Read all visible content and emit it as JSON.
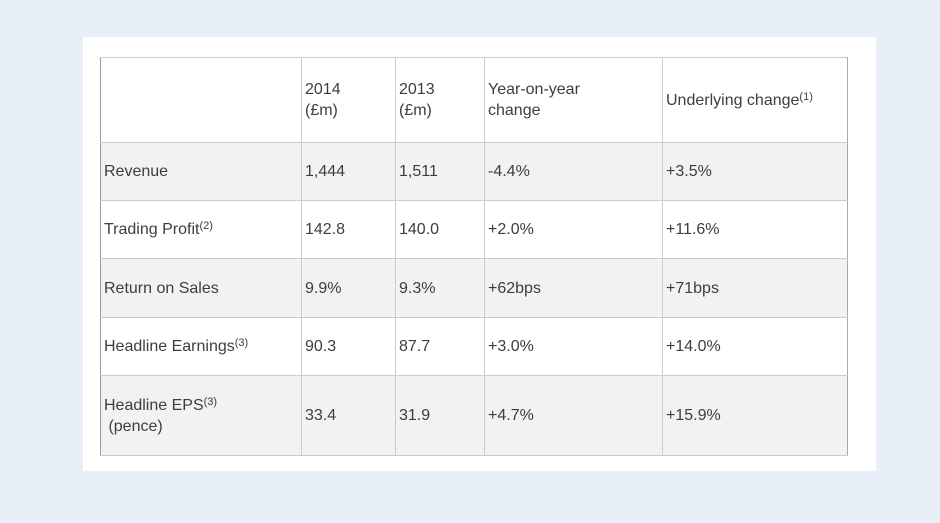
{
  "page": {
    "background_color": "#e9eff9",
    "card_background_color": "#ffffff",
    "text_color": "#3d3d3d",
    "border_color": "#cccccc",
    "stripe_color": "#f2f2f2"
  },
  "chart_data": {
    "type": "table",
    "columns": [
      "",
      "2014 (£m)",
      "2013 (£m)",
      "Year-on-year change",
      "Underlying change(1)"
    ],
    "rows": [
      [
        "Revenue",
        "1,444",
        "1,511",
        "-4.4%",
        "+3.5%"
      ],
      [
        "Trading Profit(2)",
        "142.8",
        "140.0",
        "+2.0%",
        "+11.6%"
      ],
      [
        "Return on Sales",
        "9.9%",
        "9.3%",
        "+62bps",
        "+71bps"
      ],
      [
        "Headline Earnings(3)",
        "90.3",
        "87.7",
        "+3.0%",
        "+14.0%"
      ],
      [
        "Headline EPS(3) (pence)",
        "33.4",
        "31.9",
        "+4.7%",
        "+15.9%"
      ]
    ]
  },
  "table": {
    "headers": [
      {
        "lines": [
          {
            "text": ""
          }
        ]
      },
      {
        "lines": [
          {
            "text": "2014"
          },
          {
            "text": "(£m)"
          }
        ]
      },
      {
        "lines": [
          {
            "text": "2013"
          },
          {
            "text": "(£m)"
          }
        ]
      },
      {
        "lines": [
          {
            "text": "Year-on-year"
          },
          {
            "text": "change"
          }
        ]
      },
      {
        "lines": [
          {
            "text": "Underlying change",
            "sup": "(1)"
          }
        ]
      }
    ],
    "rows": [
      {
        "label_lines": [
          {
            "text": "Revenue"
          }
        ],
        "values": [
          "1,444",
          "1,511",
          "-4.4%",
          "+3.5%"
        ]
      },
      {
        "label_lines": [
          {
            "text": "Trading Profit",
            "sup": "(2)"
          }
        ],
        "values": [
          "142.8",
          "140.0",
          "+2.0%",
          "+11.6%"
        ]
      },
      {
        "label_lines": [
          {
            "text": "Return on Sales"
          }
        ],
        "values": [
          "9.9%",
          "9.3%",
          "+62bps",
          "+71bps"
        ]
      },
      {
        "label_lines": [
          {
            "text": "Headline Earnings",
            "sup": "(3)"
          }
        ],
        "values": [
          "90.3",
          "87.7",
          "+3.0%",
          "+14.0%"
        ]
      },
      {
        "label_lines": [
          {
            "text": "Headline EPS",
            "sup": "(3)"
          },
          {
            "text": " (pence)"
          }
        ],
        "values": [
          "33.4",
          "31.9",
          "+4.7%",
          "+15.9%"
        ]
      }
    ]
  }
}
